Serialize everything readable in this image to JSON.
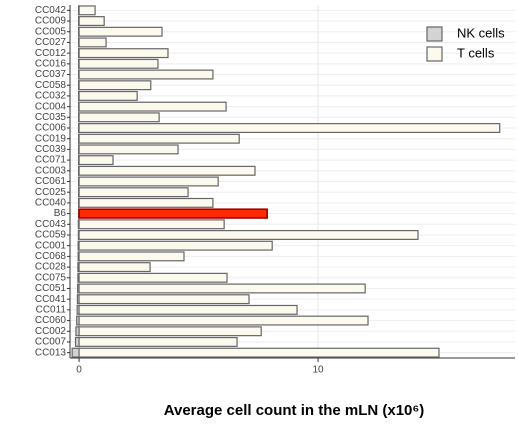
{
  "chart_data": {
    "type": "hbar",
    "x_label": "Average cell count in the mLN (x10⁶)",
    "categories": [
      "CC042",
      "CC009",
      "CC005",
      "CC027",
      "CC012",
      "CC016",
      "CC037",
      "CC058",
      "CC032",
      "CC004",
      "CC035",
      "CC006",
      "CC019",
      "CC039",
      "CC071",
      "CC003",
      "CC061",
      "CC025",
      "CC040",
      "B6",
      "CC043",
      "CC059",
      "CC001",
      "CC068",
      "CC028",
      "CC075",
      "CC051",
      "CC041",
      "CC011",
      "CC060",
      "CC002",
      "CC007",
      "CC013"
    ],
    "series": [
      {
        "name": "NK cells",
        "color": "#d3d3d3",
        "values": [
          -0.02,
          -0.02,
          -0.02,
          -0.02,
          -0.02,
          -0.02,
          -0.02,
          -0.02,
          -0.02,
          -0.02,
          -0.02,
          -0.02,
          -0.02,
          -0.02,
          -0.02,
          -0.02,
          -0.02,
          -0.02,
          -0.02,
          -0.02,
          -0.03,
          -0.03,
          -0.04,
          -0.04,
          -0.05,
          -0.05,
          -0.06,
          -0.07,
          -0.08,
          -0.1,
          -0.13,
          -0.15,
          -0.29
        ]
      },
      {
        "name": "T cells",
        "color": "#fcf9ee",
        "values": [
          0.67,
          1.05,
          3.47,
          1.13,
          3.72,
          3.3,
          5.6,
          3.0,
          2.43,
          6.15,
          3.35,
          17.6,
          6.7,
          4.14,
          1.42,
          7.36,
          5.82,
          4.56,
          5.6,
          7.87,
          6.07,
          14.18,
          8.08,
          4.39,
          2.97,
          6.19,
          11.97,
          7.11,
          9.12,
          12.09,
          7.62,
          6.61,
          15.06
        ]
      }
    ],
    "highlight_category": "B6",
    "highlight_color": "#ff2a00",
    "xlim": [
      -0.38,
      18.24
    ],
    "xticks": [
      0,
      10
    ],
    "grid": true,
    "legend": "top-right"
  }
}
